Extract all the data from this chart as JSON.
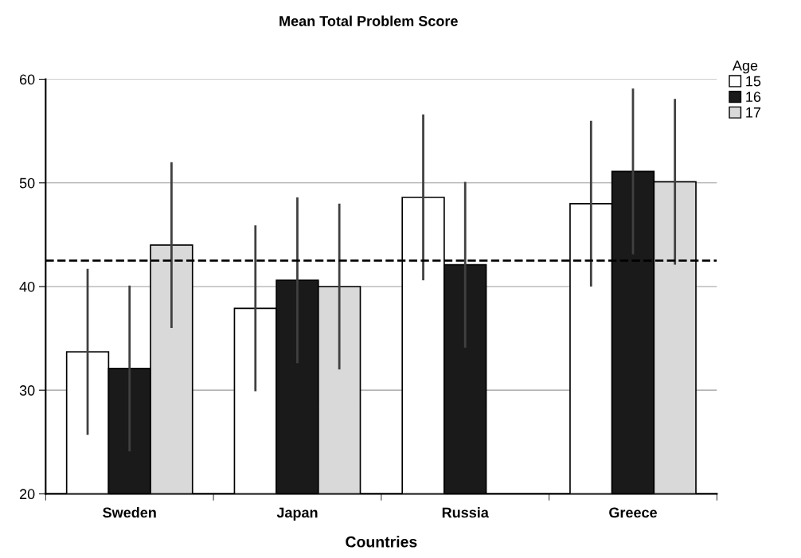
{
  "chart_data": {
    "type": "bar",
    "title": "Mean Total Problem Score",
    "xlabel": "Countries",
    "legend_title": "Age",
    "categories": [
      "Sweden",
      "Japan",
      "Russia",
      "Greece"
    ],
    "series": [
      {
        "name": "15",
        "color": "#ffffff",
        "values": [
          33.7,
          37.9,
          48.6,
          48.0
        ],
        "errors": [
          8,
          8,
          8,
          8
        ]
      },
      {
        "name": "16",
        "color": "#1a1a1a",
        "values": [
          32.1,
          40.6,
          42.1,
          51.1
        ],
        "errors": [
          8,
          8,
          8,
          8
        ]
      },
      {
        "name": "17",
        "color": "#d9d9d9",
        "values": [
          44.0,
          40.0,
          null,
          50.1
        ],
        "errors": [
          8,
          8,
          null,
          8
        ]
      }
    ],
    "ylim": [
      20,
      60
    ],
    "yticks": [
      20,
      30,
      40,
      50,
      60
    ],
    "grid": "y",
    "legend": "top right",
    "ref_lines": [
      {
        "axis": "y",
        "value": 42.5,
        "line_style": "dashed",
        "color": "#000000"
      }
    ]
  }
}
